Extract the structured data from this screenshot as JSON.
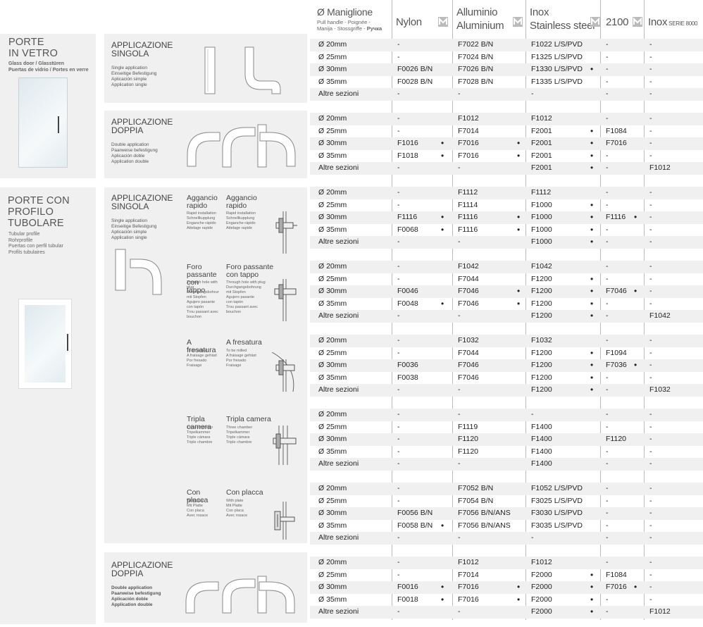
{
  "header": {
    "col_handle": {
      "title": "Ø Maniglione",
      "sub": "Pull handle - Poignée -\nManija - Stossgriffe - ",
      "sub_bold": "Ручка"
    },
    "col_nylon": "Nylon",
    "col_alu": "Alluminio\nAluminium",
    "col_inox": "Inox\nStainless steel",
    "col_2100": "2100",
    "col_inox8000": "Inox",
    "col_inox8000_small": "SERIE 8000",
    "logo_icon": "m-logo-icon"
  },
  "categories": [
    {
      "title": "PORTE\nIN VETRO",
      "sub": "Glass door / Glasstüren\nPuertas de vidrio / Portes en verre"
    },
    {
      "title": "PORTE CON\nPROFILO\nTUBOLARE",
      "sub": "Tubular profile\nRohrprofile\nPuertas con perfil tubular\nProfils tubulaires"
    }
  ],
  "applications": [
    {
      "title": "APPLICAZIONE\nSINGOLA",
      "sub": "Single application\nEinseitige Befestigung\nAplicación simple\nApplication single"
    },
    {
      "title": "APPLICAZIONE\nDOPPIA",
      "sub": "Double application\nPaarweise befestigung\nAplicación doble\nApplication double"
    },
    {
      "title": "APPLICAZIONE\nSINGOLA",
      "sub": "Single application\nEinseitige Befestigung\nAplicación simple\nApplication single"
    },
    {
      "title": "APPLICAZIONE\nDOPPIA",
      "sub": "Double application\nPaarweise befestigung\nAplicación doble\nApplication double"
    }
  ],
  "options": [
    {
      "a_title": "Aggancio\nrapido",
      "a_sub": "Rapid installation\nSchnellkupplung\nEnganche rápido\nAttelage rapide",
      "b_title": "Aggancio\nrapido",
      "b_sub": "Rapid installation\nSchnellkupplung\nEnganche rápido\nAttelage rapide"
    },
    {
      "a_title": "Foro passante\ncon tappo",
      "a_sub": "Through hole with plug\nDurchgangsbohrung\nmit Stopfen\nAgujero pasante\ncon tapón\nTrou passant avec\nbouchon",
      "b_title": "Foro passante\ncon tappo",
      "b_sub": "Through hole with plug\nDurchgangsbohrung\nmit Stopfen\nAgujero pasante\ncon tapón\nTrou passant avec\nbouchon"
    },
    {
      "a_title": "A fresatura",
      "a_sub": "To be milled\nA fraisage gefräst\nPor fresado\nFraisage",
      "b_title": "A fresatura",
      "b_sub": "To be milled\nA fraisage gefräst\nPor fresado\nFraisage"
    },
    {
      "a_title": "Tripla camera",
      "a_sub": "Three chamber\nTripelkammer\nTriple cámara\nTriple chambre",
      "b_title": "Tripla camera",
      "b_sub": "Three chamber\nTripelkammer\nTriple cámara\nTriple chambre"
    },
    {
      "a_title": "Con placca",
      "a_sub": "With plate\nMit Platte\nCon placa\nAvec rosace",
      "b_title": "Con placca",
      "b_sub": "With plate\nMit Platte\nCon placa\nAvec rosace"
    }
  ],
  "groups": [
    {
      "rows": [
        [
          "Ø 20mm",
          "-",
          "",
          "F7022 B/N",
          "",
          "F1022 L/S/PVD",
          "",
          "-",
          "",
          "-"
        ],
        [
          "Ø 25mm",
          "-",
          "",
          "F7024 B/N",
          "",
          "F1325 L/S/PVD",
          "",
          "-",
          "",
          "-"
        ],
        [
          "Ø 30mm",
          "F0026 B/N",
          "",
          "F7026 B/N",
          "",
          "F1330 L/S/PVD",
          "•",
          "-",
          "",
          "-"
        ],
        [
          "Ø 35mm",
          "F0028 B/N",
          "",
          "F7028 B/N",
          "",
          "F1335 L/S/PVD",
          "",
          "-",
          "",
          "-"
        ],
        [
          "Altre sezioni",
          "-",
          "",
          "-",
          "",
          "-",
          "",
          "-",
          "",
          "-"
        ]
      ]
    },
    {
      "rows": [
        [
          "Ø 20mm",
          "-",
          "",
          "F1012",
          "",
          "F1012",
          "",
          "-",
          "",
          "-"
        ],
        [
          "Ø 25mm",
          "-",
          "",
          "F7014",
          "",
          "F2001",
          "•",
          "F1084",
          "",
          "-"
        ],
        [
          "Ø 30mm",
          "F1016",
          "•",
          "F7016",
          "•",
          "F2001",
          "•",
          "F7016",
          "",
          "-"
        ],
        [
          "Ø 35mm",
          "F1018",
          "•",
          "F7016",
          "•",
          "F2001",
          "•",
          "-",
          "",
          "-"
        ],
        [
          "Altre sezioni",
          "-",
          "",
          "-",
          "",
          "F2001",
          "•",
          "-",
          "",
          "F1012"
        ]
      ]
    },
    {
      "rows": [
        [
          "Ø 20mm",
          "-",
          "",
          "F1112",
          "",
          "F1112",
          "",
          "-",
          "",
          "-"
        ],
        [
          "Ø 25mm",
          "-",
          "",
          "F1114",
          "",
          "F1000",
          "•",
          "-",
          "",
          "-"
        ],
        [
          "Ø 30mm",
          "F1116",
          "•",
          "F1116",
          "•",
          "F1000",
          "•",
          "F1116",
          "•",
          "-"
        ],
        [
          "Ø 35mm",
          "F0068",
          "•",
          "F1116",
          "•",
          "F1000",
          "•",
          "-",
          "",
          "-"
        ],
        [
          "Altre sezioni",
          "-",
          "",
          "-",
          "",
          "F1000",
          "•",
          "-",
          "",
          "-"
        ]
      ]
    },
    {
      "rows": [
        [
          "Ø 20mm",
          "-",
          "",
          "F1042",
          "",
          "F1042",
          "",
          "-",
          "",
          "-"
        ],
        [
          "Ø 25mm",
          "-",
          "",
          "F7044",
          "",
          "F1200",
          "•",
          "-",
          "",
          "-"
        ],
        [
          "Ø 30mm",
          "F0046",
          "",
          "F7046",
          "•",
          "F1200",
          "•",
          "F7046",
          "•",
          "-"
        ],
        [
          "Ø 35mm",
          "F0048",
          "•",
          "F7046",
          "•",
          "F1200",
          "•",
          "-",
          "",
          "-"
        ],
        [
          "Altre sezioni",
          "-",
          "",
          "-",
          "",
          "F1200",
          "•",
          "-",
          "",
          "F1042"
        ]
      ]
    },
    {
      "rows": [
        [
          "Ø 20mm",
          "-",
          "",
          "F1032",
          "",
          "F1032",
          "",
          "-",
          "",
          "-"
        ],
        [
          "Ø 25mm",
          "-",
          "",
          "F7044",
          "",
          "F1200",
          "•",
          "F1094",
          "",
          "-"
        ],
        [
          "Ø 30mm",
          "F0036",
          "",
          "F7046",
          "",
          "F1200",
          "•",
          "F7036",
          "•",
          "-"
        ],
        [
          "Ø 35mm",
          "F0038",
          "",
          "F7046",
          "",
          "F1200",
          "•",
          "-",
          "",
          "-"
        ],
        [
          "Altre sezioni",
          "-",
          "",
          "-",
          "",
          "F1200",
          "•",
          "-",
          "",
          "F1032"
        ]
      ]
    },
    {
      "rows": [
        [
          "Ø 20mm",
          "-",
          "",
          "-",
          "",
          "-",
          "",
          "-",
          "",
          "-"
        ],
        [
          "Ø 25mm",
          "-",
          "",
          "F1119",
          "",
          "F1400",
          "",
          "-",
          "",
          "-"
        ],
        [
          "Ø 30mm",
          "-",
          "",
          "F1120",
          "",
          "F1400",
          "",
          "F1120",
          "",
          "-"
        ],
        [
          "Ø 35mm",
          "-",
          "",
          "F1120",
          "",
          "F1400",
          "",
          "-",
          "",
          "-"
        ],
        [
          "Altre sezioni",
          "-",
          "",
          "-",
          "",
          "F1400",
          "",
          "-",
          "",
          "-"
        ]
      ]
    },
    {
      "rows": [
        [
          "Ø 20mm",
          "-",
          "",
          "F7052 B/N",
          "",
          "F1052 L/S/PVD",
          "",
          "-",
          "",
          "-"
        ],
        [
          "Ø 25mm",
          "-",
          "",
          "F7054 B/N",
          "",
          "F3025 L/S/PVD",
          "",
          "-",
          "",
          "-"
        ],
        [
          "Ø 30mm",
          "F0056 B/N",
          "",
          "F7056 B/N/ANS",
          "",
          "F3030 L/S/PVD",
          "",
          "-",
          "",
          "-"
        ],
        [
          "Ø 35mm",
          "F0058 B/N",
          "•",
          "F7056 B/N/ANS",
          "",
          "F3035 L/S/PVD",
          "",
          "-",
          "",
          "-"
        ],
        [
          "Altre sezioni",
          "-",
          "",
          "-",
          "",
          "-",
          "",
          "-",
          "",
          "-"
        ]
      ]
    },
    {
      "rows": [
        [
          "Ø 20mm",
          "-",
          "",
          "F1012",
          "",
          "F1012",
          "",
          "-",
          "",
          "-"
        ],
        [
          "Ø 25mm",
          "-",
          "",
          "F7014",
          "",
          "F2000",
          "•",
          "F1084",
          "",
          "-"
        ],
        [
          "Ø 30mm",
          "F0016",
          "•",
          "F7016",
          "•",
          "F2000",
          "•",
          "F7016",
          "•",
          "-"
        ],
        [
          "Ø 35mm",
          "F0018",
          "•",
          "F7016",
          "•",
          "F2000",
          "•",
          "-",
          "",
          "-"
        ],
        [
          "Altre sezioni",
          "-",
          "",
          "-",
          "",
          "F2000",
          "•",
          "-",
          "",
          "F1012"
        ]
      ]
    }
  ]
}
